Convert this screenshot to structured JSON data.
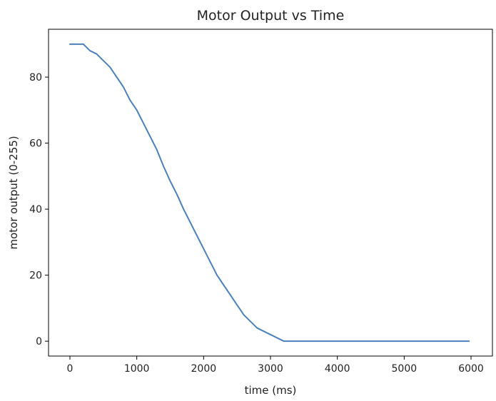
{
  "chart_data": {
    "type": "line",
    "title": "Motor Output vs Time",
    "xlabel": "time (ms)",
    "ylabel": "motor output (0-255)",
    "xlim": [
      -320,
      6320
    ],
    "ylim": [
      -4.5,
      94.5
    ],
    "xticks": [
      0,
      1000,
      2000,
      3000,
      4000,
      5000,
      6000
    ],
    "yticks": [
      0,
      20,
      40,
      60,
      80
    ],
    "grid": false,
    "legend": "none",
    "colors": {
      "line": "#4a81bd",
      "axes": "#000000"
    },
    "series": [
      {
        "x": [
          0,
          100,
          200,
          300,
          400,
          500,
          600,
          700,
          800,
          900,
          1000,
          1100,
          1200,
          1300,
          1400,
          1500,
          1600,
          1700,
          1800,
          1900,
          2000,
          2100,
          2200,
          2300,
          2400,
          2500,
          2600,
          2700,
          2800,
          2900,
          3000,
          3100,
          3200,
          3400,
          3600,
          3800,
          4000,
          4500,
          5000,
          5500,
          5970
        ],
        "y": [
          90,
          90,
          90,
          88,
          87,
          85,
          83,
          80,
          77,
          73,
          70,
          66,
          62,
          58,
          53,
          48.5,
          44.5,
          40,
          36,
          32,
          28,
          24,
          20,
          17,
          14,
          11,
          8,
          6,
          4,
          3,
          2,
          1,
          0,
          0,
          0,
          0,
          0,
          0,
          0,
          0,
          0
        ]
      }
    ]
  }
}
